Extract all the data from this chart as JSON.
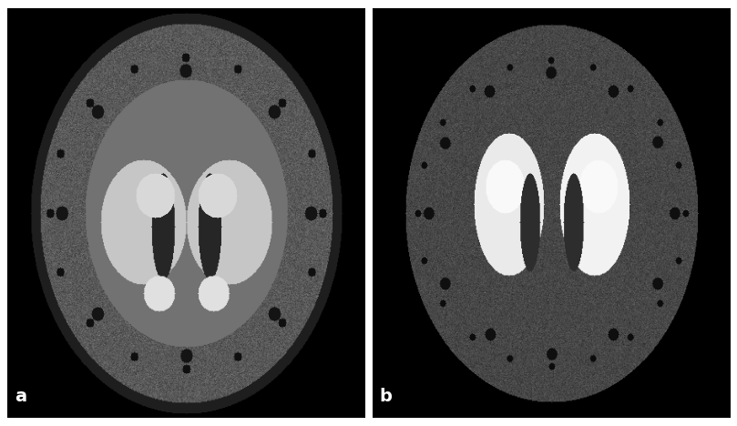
{
  "fig_width": 8.09,
  "fig_height": 4.68,
  "dpi": 100,
  "background_color": "#ffffff",
  "border_color": "#ffffff",
  "border_linewidth": 2,
  "label_a": "a",
  "label_b": "b",
  "label_color": "#ffffff",
  "label_bg_color": "#000000",
  "label_fontsize": 14,
  "separator_color": "#ffffff",
  "separator_linewidth": 2,
  "image_border_color": "#ffffff",
  "image_border_linewidth": 1
}
